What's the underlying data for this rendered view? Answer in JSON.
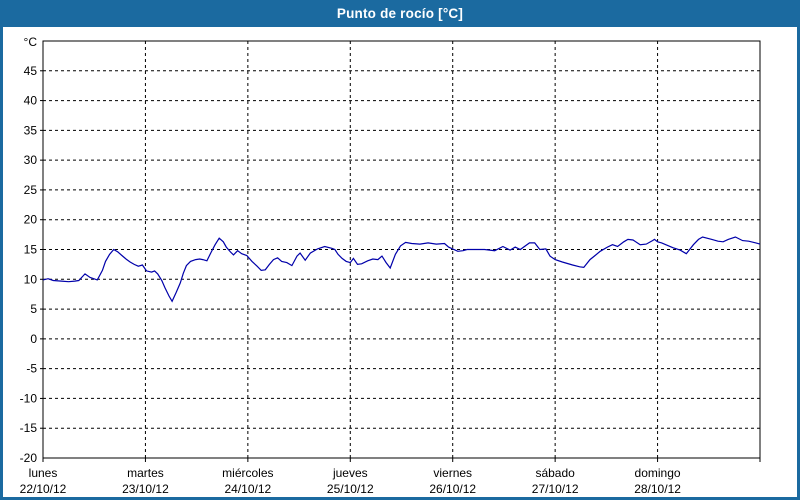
{
  "window": {
    "title": "Punto de rocío [°C]",
    "colors": {
      "frame": "#1B6AA0",
      "title_text": "#FFFFFF",
      "panel_bg": "#FFFFFF",
      "axis": "#000000",
      "grid": "#000000",
      "label_text": "#000000",
      "series_line": "#0000AA"
    }
  },
  "chart_data": {
    "type": "line",
    "title": "Punto de rocío [°C]",
    "y_unit_label": "°C",
    "ylim": [
      -20,
      50
    ],
    "y_gridlines": [
      45,
      40,
      35,
      30,
      25,
      20,
      15,
      10,
      5,
      0,
      -5,
      -10,
      -15
    ],
    "y_bottom_label": "-20",
    "grid_style": "dashed",
    "legend": "none",
    "x_days_total": 7,
    "x_categories": [
      {
        "day": "lunes",
        "date": "22/10/12"
      },
      {
        "day": "martes",
        "date": "23/10/12"
      },
      {
        "day": "miércoles",
        "date": "24/10/12"
      },
      {
        "day": "jueves",
        "date": "25/10/12"
      },
      {
        "day": "viernes",
        "date": "26/10/12"
      },
      {
        "day": "sábado",
        "date": "27/10/12"
      },
      {
        "day": "domingo",
        "date": "28/10/12"
      }
    ],
    "series": [
      {
        "name": "Punto de rocío",
        "color": "#0000AA",
        "points": [
          [
            0.0,
            9.9
          ],
          [
            0.05,
            10.1
          ],
          [
            0.1,
            9.8
          ],
          [
            0.18,
            9.7
          ],
          [
            0.25,
            9.6
          ],
          [
            0.31,
            9.7
          ],
          [
            0.35,
            9.8
          ],
          [
            0.41,
            10.9
          ],
          [
            0.46,
            10.3
          ],
          [
            0.53,
            9.9
          ],
          [
            0.58,
            11.5
          ],
          [
            0.61,
            13.0
          ],
          [
            0.65,
            14.2
          ],
          [
            0.69,
            15.0
          ],
          [
            0.73,
            14.6
          ],
          [
            0.77,
            14.0
          ],
          [
            0.81,
            13.4
          ],
          [
            0.85,
            12.9
          ],
          [
            0.89,
            12.5
          ],
          [
            0.93,
            12.2
          ],
          [
            0.97,
            12.4
          ],
          [
            1.01,
            11.4
          ],
          [
            1.06,
            11.2
          ],
          [
            1.09,
            11.4
          ],
          [
            1.12,
            10.9
          ],
          [
            1.16,
            9.8
          ],
          [
            1.19,
            8.6
          ],
          [
            1.23,
            7.2
          ],
          [
            1.26,
            6.3
          ],
          [
            1.3,
            7.8
          ],
          [
            1.34,
            9.4
          ],
          [
            1.37,
            11.0
          ],
          [
            1.4,
            12.3
          ],
          [
            1.44,
            13.0
          ],
          [
            1.49,
            13.3
          ],
          [
            1.53,
            13.4
          ],
          [
            1.56,
            13.3
          ],
          [
            1.6,
            13.1
          ],
          [
            1.64,
            14.5
          ],
          [
            1.68,
            15.8
          ],
          [
            1.72,
            16.9
          ],
          [
            1.76,
            16.3
          ],
          [
            1.79,
            15.4
          ],
          [
            1.83,
            14.6
          ],
          [
            1.86,
            14.1
          ],
          [
            1.9,
            14.8
          ],
          [
            1.94,
            14.3
          ],
          [
            1.99,
            14.0
          ],
          [
            2.04,
            13.0
          ],
          [
            2.09,
            12.2
          ],
          [
            2.13,
            11.5
          ],
          [
            2.17,
            11.6
          ],
          [
            2.21,
            12.5
          ],
          [
            2.25,
            13.3
          ],
          [
            2.29,
            13.6
          ],
          [
            2.33,
            13.0
          ],
          [
            2.38,
            12.8
          ],
          [
            2.43,
            12.3
          ],
          [
            2.48,
            13.9
          ],
          [
            2.51,
            14.4
          ],
          [
            2.56,
            13.2
          ],
          [
            2.61,
            14.4
          ],
          [
            2.68,
            15.1
          ],
          [
            2.75,
            15.5
          ],
          [
            2.82,
            15.2
          ],
          [
            2.85,
            15.0
          ],
          [
            2.88,
            14.2
          ],
          [
            2.92,
            13.5
          ],
          [
            2.96,
            13.0
          ],
          [
            3.0,
            12.8
          ],
          [
            3.03,
            13.5
          ],
          [
            3.07,
            12.5
          ],
          [
            3.11,
            12.6
          ],
          [
            3.17,
            13.1
          ],
          [
            3.22,
            13.4
          ],
          [
            3.27,
            13.3
          ],
          [
            3.31,
            13.9
          ],
          [
            3.35,
            12.8
          ],
          [
            3.39,
            11.9
          ],
          [
            3.44,
            14.2
          ],
          [
            3.49,
            15.6
          ],
          [
            3.54,
            16.2
          ],
          [
            3.6,
            16.0
          ],
          [
            3.68,
            15.9
          ],
          [
            3.76,
            16.1
          ],
          [
            3.84,
            15.9
          ],
          [
            3.92,
            16.0
          ],
          [
            3.96,
            15.4
          ],
          [
            4.0,
            15.1
          ],
          [
            4.05,
            14.7
          ],
          [
            4.1,
            14.8
          ],
          [
            4.14,
            15.0
          ],
          [
            4.22,
            15.0
          ],
          [
            4.31,
            15.0
          ],
          [
            4.41,
            14.8
          ],
          [
            4.49,
            15.5
          ],
          [
            4.56,
            14.9
          ],
          [
            4.61,
            15.4
          ],
          [
            4.66,
            15.0
          ],
          [
            4.75,
            16.1
          ],
          [
            4.8,
            16.1
          ],
          [
            4.85,
            15.0
          ],
          [
            4.91,
            15.1
          ],
          [
            4.95,
            13.9
          ],
          [
            5.0,
            13.3
          ],
          [
            5.07,
            12.9
          ],
          [
            5.17,
            12.4
          ],
          [
            5.24,
            12.1
          ],
          [
            5.28,
            12.0
          ],
          [
            5.34,
            13.3
          ],
          [
            5.39,
            14.0
          ],
          [
            5.44,
            14.7
          ],
          [
            5.51,
            15.4
          ],
          [
            5.56,
            15.8
          ],
          [
            5.61,
            15.5
          ],
          [
            5.67,
            16.3
          ],
          [
            5.71,
            16.7
          ],
          [
            5.76,
            16.6
          ],
          [
            5.83,
            15.8
          ],
          [
            5.89,
            15.9
          ],
          [
            5.95,
            16.5
          ],
          [
            5.97,
            16.7
          ],
          [
            6.0,
            16.3
          ],
          [
            6.04,
            16.1
          ],
          [
            6.08,
            15.8
          ],
          [
            6.15,
            15.3
          ],
          [
            6.22,
            14.9
          ],
          [
            6.28,
            14.3
          ],
          [
            6.35,
            15.8
          ],
          [
            6.4,
            16.7
          ],
          [
            6.44,
            17.1
          ],
          [
            6.53,
            16.7
          ],
          [
            6.59,
            16.4
          ],
          [
            6.64,
            16.3
          ],
          [
            6.69,
            16.7
          ],
          [
            6.76,
            17.1
          ],
          [
            6.83,
            16.5
          ],
          [
            6.89,
            16.4
          ],
          [
            6.96,
            16.1
          ],
          [
            7.0,
            15.9
          ]
        ]
      }
    ]
  }
}
